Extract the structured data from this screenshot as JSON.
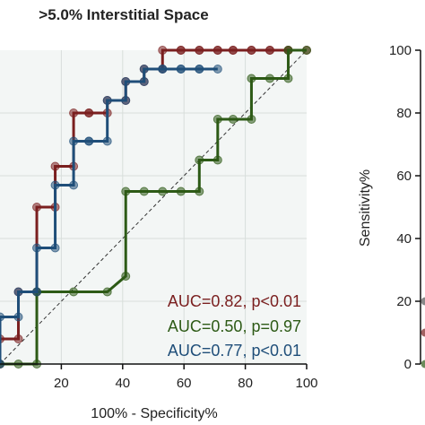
{
  "chart_data": [
    {
      "type": "line",
      "title": ">5.0% Interstitial Space",
      "xlabel": "100% - Specificity%",
      "ylabel": "",
      "xlim": [
        0,
        100
      ],
      "ylim": [
        0,
        100
      ],
      "x_ticks": [
        20,
        40,
        60,
        80,
        100
      ],
      "grid": true,
      "reference_line": "diagonal",
      "annotations": [
        {
          "text": "AUC=0.82, p<0.01",
          "color": "#7a1f1f"
        },
        {
          "text": "AUC=0.50, p=0.97",
          "color": "#2d5a16"
        },
        {
          "text": "AUC=0.77, p<0.01",
          "color": "#1f4e79"
        }
      ],
      "series": [
        {
          "color": "#7a1f1f",
          "x": [
            0,
            0,
            6,
            6,
            12,
            12,
            18,
            18,
            24,
            24,
            29,
            29,
            35,
            35,
            41,
            41,
            47,
            47,
            53,
            53,
            59,
            59,
            65,
            65,
            71,
            71,
            76,
            76,
            82,
            82,
            88,
            88,
            94,
            94,
            100
          ],
          "y": [
            0,
            8,
            8,
            23,
            23,
            50,
            50,
            63,
            63,
            80,
            80,
            80,
            80,
            84,
            84,
            90,
            90,
            94,
            94,
            100,
            100,
            100,
            100,
            100,
            100,
            100,
            100,
            100,
            100,
            100,
            100,
            100,
            100,
            100,
            100
          ]
        },
        {
          "color": "#2d5a16",
          "x": [
            0,
            6,
            12,
            12,
            24,
            35,
            41,
            41,
            47,
            53,
            59,
            65,
            65,
            71,
            71,
            76,
            82,
            82,
            88,
            94,
            94,
            100
          ],
          "y": [
            0,
            0,
            0,
            23,
            23,
            23,
            28,
            55,
            55,
            55,
            55,
            55,
            65,
            65,
            78,
            78,
            78,
            91,
            91,
            91,
            100,
            100
          ]
        },
        {
          "color": "#1f4e79",
          "x": [
            0,
            0,
            6,
            6,
            12,
            12,
            18,
            18,
            24,
            24,
            29,
            29,
            35,
            35,
            41,
            41,
            47,
            47,
            53,
            53,
            59,
            59,
            65,
            65,
            71
          ],
          "y": [
            0,
            15,
            15,
            23,
            23,
            37,
            37,
            57,
            57,
            71,
            71,
            71,
            71,
            84,
            84,
            90,
            90,
            94,
            94,
            94,
            94,
            94,
            94,
            94,
            94
          ]
        }
      ]
    },
    {
      "type": "line",
      "title": "",
      "xlabel": "",
      "ylabel": "Sensitivity%",
      "ylim": [
        0,
        100
      ],
      "y_ticks": [
        0,
        20,
        40,
        60,
        80,
        100
      ]
    }
  ]
}
